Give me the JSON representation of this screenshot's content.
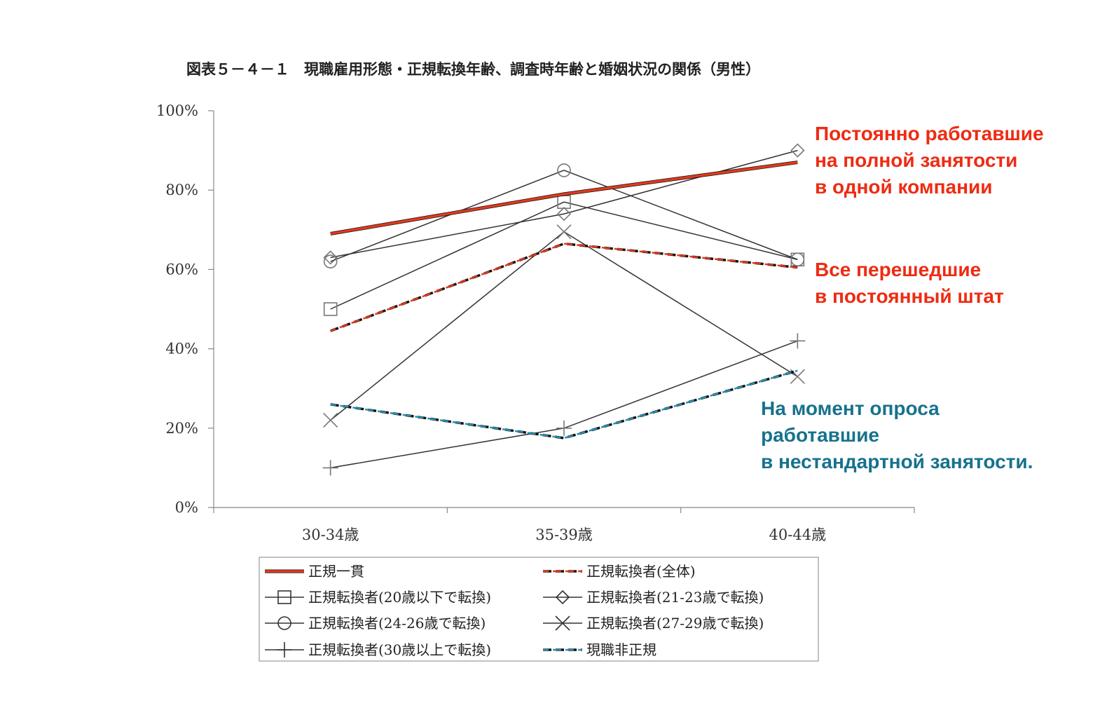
{
  "chart_data": {
    "type": "line",
    "title": "図表５－４－１　現職雇用形態・正規転換年齢、調査時年齢と婚姻状況の関係（男性）",
    "categories": [
      "30-34歳",
      "35-39歳",
      "40-44歳"
    ],
    "ylim": [
      0,
      100
    ],
    "yticks": [
      "0%",
      "20%",
      "40%",
      "60%",
      "80%",
      "100%"
    ],
    "grid": false,
    "legend_position": "bottom",
    "series": [
      {
        "name": "正規一貫",
        "values": [
          69,
          79,
          87
        ],
        "color": "#111111",
        "overlay": "#e03a1e",
        "style": "thick",
        "marker": "none"
      },
      {
        "name": "正規転換者(全体)",
        "values": [
          44.5,
          66.5,
          60.5
        ],
        "color": "#111111",
        "overlay": "#e03a1e",
        "style": "dashed",
        "marker": "none"
      },
      {
        "name": "正規転換者(20歳以下で転換)",
        "values": [
          50,
          77,
          62.5
        ],
        "color": "#333333",
        "style": "solid",
        "marker": "square"
      },
      {
        "name": "正規転換者(21-23歳で転換)",
        "values": [
          63,
          74,
          90
        ],
        "color": "#333333",
        "style": "solid",
        "marker": "diamond"
      },
      {
        "name": "正規転換者(24-26歳で転換)",
        "values": [
          62,
          85,
          62.5
        ],
        "color": "#333333",
        "style": "solid",
        "marker": "circle"
      },
      {
        "name": "正規転換者(27-29歳で転換)",
        "values": [
          22,
          69.5,
          33
        ],
        "color": "#333333",
        "style": "solid",
        "marker": "x"
      },
      {
        "name": "正規転換者(30歳以上で転換)",
        "values": [
          10,
          20,
          42
        ],
        "color": "#333333",
        "style": "solid",
        "marker": "plus"
      },
      {
        "name": "現職非正規",
        "values": [
          26,
          17.5,
          34.5
        ],
        "color": "#111111",
        "overlay": "#2a8fb0",
        "style": "dashed",
        "marker": "none"
      }
    ]
  },
  "annotations": [
    {
      "lines": [
        "Постоянно работавшие",
        "на полной занятости",
        "в одной компании"
      ],
      "color": "#ee2b12"
    },
    {
      "lines": [
        "Все перешедшие",
        "в постоянный штат"
      ],
      "color": "#ee2b12"
    },
    {
      "lines": [
        "На момент опроса",
        "работавшие",
        "в нестандартной занятости."
      ],
      "color": "#17728d"
    }
  ]
}
